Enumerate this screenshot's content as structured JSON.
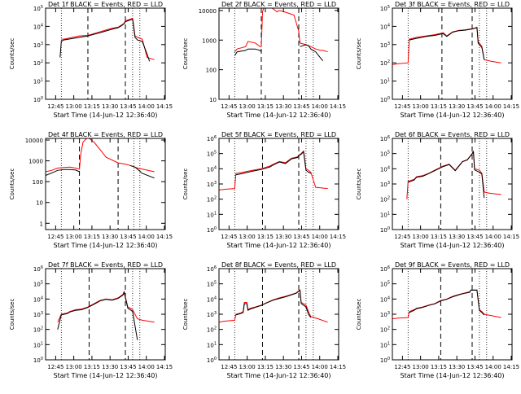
{
  "figure": {
    "x_label": "Start Time (14-Jun-12 12:36:40)",
    "y_label": "Counts/sec",
    "x_ticks": [
      "12:45",
      "13:00",
      "13:15",
      "13:30",
      "13:45",
      "14:00",
      "14:15"
    ],
    "series_colors": {
      "black": "#000000",
      "red": "#ff0000"
    }
  },
  "chart_data": [
    {
      "type": "line",
      "title": "Det 1f BLACK = Events, RED = LLD",
      "yscale": "log",
      "ylim": [
        1,
        100000
      ],
      "y_tick_labels": [
        "10^0",
        "10^1",
        "10^2",
        "10^3",
        "10^4",
        "10^5"
      ],
      "x_minutes": [
        0,
        10,
        12,
        13,
        15,
        28,
        35,
        45,
        55,
        60,
        63,
        65,
        66,
        72,
        74,
        76,
        80,
        84,
        86,
        90
      ],
      "series": [
        {
          "color": "red",
          "values": [
            null,
            null,
            null,
            2000,
            2000,
            3000,
            3200,
            5000,
            8000,
            9000,
            12000,
            15000,
            20000,
            28000,
            3000,
            2500,
            2000,
            200,
            180,
            150
          ]
        },
        {
          "color": "black",
          "values": [
            null,
            null,
            200,
            1500,
            1800,
            2500,
            3000,
            4500,
            7000,
            8500,
            11000,
            14000,
            18000,
            25000,
            2500,
            1800,
            1500,
            300,
            120,
            null
          ]
        }
      ],
      "vlines_dotted": [
        13,
        72,
        78
      ],
      "vlines_dashed": [
        35,
        66
      ]
    },
    {
      "type": "line",
      "title": "Det 2f BLACK = Events, RED = LLD",
      "yscale": "log",
      "ylim": [
        10,
        12000
      ],
      "y_tick_labels": [
        "10",
        "100",
        "1000",
        "10000"
      ],
      "x_minutes": [
        0,
        10,
        12,
        13,
        15,
        22,
        24,
        30,
        34,
        35,
        36,
        37,
        40,
        44,
        48,
        50,
        54,
        62,
        66,
        67,
        72,
        74,
        76,
        80,
        84,
        86,
        90
      ],
      "series": [
        {
          "color": "red",
          "values": [
            null,
            null,
            null,
            400,
            500,
            600,
            900,
            800,
            600,
            600,
            9000,
            12000,
            12000,
            12000,
            9000,
            10000,
            9000,
            7000,
            2000,
            800,
            700,
            650,
            600,
            500,
            450,
            450,
            400
          ]
        },
        {
          "color": "black",
          "values": [
            null,
            null,
            null,
            300,
            400,
            450,
            500,
            500,
            450,
            400,
            null,
            null,
            null,
            null,
            null,
            null,
            null,
            null,
            null,
            600,
            700,
            650,
            500,
            400,
            250,
            200,
            null
          ]
        }
      ],
      "vlines_dotted": [
        13,
        72,
        78
      ],
      "vlines_dashed": [
        35,
        66
      ]
    },
    {
      "type": "line",
      "title": "Det 3f BLACK = Events, RED = LLD",
      "yscale": "log",
      "ylim": [
        1,
        100000
      ],
      "y_tick_labels": [
        "10^0",
        "10^1",
        "10^2",
        "10^3",
        "10^4",
        "10^5"
      ],
      "x_minutes": [
        0,
        5,
        13,
        14,
        20,
        28,
        35,
        42,
        45,
        50,
        55,
        60,
        66,
        68,
        70,
        71,
        72,
        74,
        76,
        82,
        90
      ],
      "series": [
        {
          "color": "red",
          "values": [
            80,
            90,
            100,
            2000,
            2500,
            3000,
            3500,
            4500,
            3000,
            5000,
            6000,
            6500,
            7500,
            8000,
            9000,
            1500,
            1200,
            800,
            150,
            120,
            100
          ]
        },
        {
          "color": "black",
          "values": [
            null,
            null,
            null,
            1800,
            2200,
            2800,
            3200,
            4000,
            2800,
            4800,
            5800,
            6200,
            7200,
            7800,
            8500,
            1200,
            1000,
            700,
            150,
            null,
            null
          ]
        }
      ],
      "vlines_dotted": [
        13,
        72,
        78
      ],
      "vlines_dashed": [
        41,
        66
      ]
    },
    {
      "type": "line",
      "title": "Det 4f BLACK = Events, RED = LLD",
      "yscale": "log",
      "ylim": [
        0.5,
        12000
      ],
      "y_tick_labels": [
        "1",
        "10",
        "100",
        "1000",
        "10000"
      ],
      "x_minutes": [
        0,
        5,
        10,
        15,
        20,
        25,
        28,
        29,
        31,
        34,
        36,
        40,
        46,
        50,
        60,
        66,
        70,
        74,
        76,
        80,
        90
      ],
      "series": [
        {
          "color": "red",
          "values": [
            300,
            350,
            450,
            480,
            500,
            450,
            400,
            2000,
            8000,
            12000,
            12000,
            8000,
            3000,
            1500,
            800,
            700,
            600,
            500,
            450,
            400,
            300
          ]
        },
        {
          "color": "black",
          "values": [
            200,
            260,
            350,
            380,
            380,
            360,
            300,
            null,
            null,
            null,
            null,
            null,
            null,
            null,
            null,
            null,
            600,
            500,
            400,
            250,
            150
          ]
        }
      ],
      "vlines_dotted": [
        13,
        73,
        78
      ],
      "vlines_dashed": [
        28,
        60
      ]
    },
    {
      "type": "line",
      "title": "Det 5f BLACK = Events, RED = LLD",
      "yscale": "log",
      "ylim": [
        1,
        1000000
      ],
      "y_tick_labels": [
        "10^0",
        "10^1",
        "10^2",
        "10^3",
        "10^4",
        "10^5",
        "10^6"
      ],
      "x_minutes": [
        0,
        5,
        13,
        14,
        20,
        28,
        35,
        42,
        45,
        50,
        55,
        60,
        65,
        66,
        68,
        70,
        72,
        74,
        76,
        80,
        90
      ],
      "series": [
        {
          "color": "red",
          "values": [
            400,
            450,
            500,
            5000,
            6000,
            8000,
            10000,
            15000,
            20000,
            30000,
            25000,
            50000,
            60000,
            80000,
            100000,
            150000,
            10000,
            8000,
            6000,
            600,
            500
          ]
        },
        {
          "color": "black",
          "values": [
            null,
            null,
            null,
            4000,
            5000,
            7000,
            9000,
            13000,
            18000,
            28000,
            22000,
            45000,
            55000,
            75000,
            90000,
            130000,
            8000,
            6000,
            5000,
            null,
            null
          ]
        }
      ],
      "vlines_dotted": [
        13,
        72,
        78
      ],
      "vlines_dashed": [
        36,
        66
      ]
    },
    {
      "type": "line",
      "title": "Det 6f BLACK = Events, RED = LLD",
      "yscale": "log",
      "ylim": [
        1,
        1000000
      ],
      "y_tick_labels": [
        "10^0",
        "10^1",
        "10^2",
        "10^3",
        "10^4",
        "10^5",
        "10^6"
      ],
      "x_minutes": [
        0,
        8,
        10,
        12,
        13,
        18,
        20,
        25,
        30,
        35,
        42,
        47,
        52,
        58,
        62,
        66,
        67,
        68,
        72,
        74,
        76,
        80,
        90
      ],
      "series": [
        {
          "color": "red",
          "values": [
            null,
            null,
            null,
            100,
            1500,
            2000,
            3000,
            3500,
            5000,
            8000,
            15000,
            20000,
            8000,
            30000,
            40000,
            100000,
            150000,
            10000,
            8000,
            5000,
            300,
            250,
            200
          ]
        },
        {
          "color": "black",
          "values": [
            null,
            null,
            120,
            null,
            1300,
            1800,
            2800,
            3200,
            4800,
            7500,
            14000,
            19000,
            7500,
            29000,
            38000,
            95000,
            140000,
            8500,
            6000,
            4500,
            120,
            null,
            null
          ]
        }
      ],
      "vlines_dotted": [
        13,
        72,
        78
      ],
      "vlines_dashed": [
        40,
        66
      ]
    },
    {
      "type": "line",
      "title": "Det 7f BLACK = Events, RED = LLD",
      "yscale": "log",
      "ylim": [
        1,
        1000000
      ],
      "y_tick_labels": [
        "10^0",
        "10^1",
        "10^2",
        "10^3",
        "10^4",
        "10^5",
        "10^6"
      ],
      "x_minutes": [
        0,
        8,
        10,
        13,
        18,
        20,
        25,
        30,
        35,
        40,
        45,
        50,
        55,
        60,
        64,
        65,
        68,
        70,
        72,
        76,
        80,
        90
      ],
      "series": [
        {
          "color": "red",
          "values": [
            null,
            null,
            300,
            1000,
            1200,
            1500,
            2000,
            2200,
            3000,
            5000,
            8000,
            10000,
            9000,
            12000,
            20000,
            30000,
            3000,
            2500,
            2000,
            500,
            400,
            300
          ]
        },
        {
          "color": "black",
          "values": [
            null,
            null,
            100,
            900,
            1100,
            1400,
            1800,
            2000,
            2800,
            4500,
            7500,
            9500,
            8500,
            11000,
            18000,
            28000,
            2500,
            2000,
            1500,
            20,
            null,
            null
          ]
        }
      ],
      "vlines_dotted": [
        13,
        72,
        78
      ],
      "vlines_dashed": [
        36,
        66
      ]
    },
    {
      "type": "line",
      "title": "Det 8f BLACK = Events, RED = LLD",
      "yscale": "log",
      "ylim": [
        1,
        1000000
      ],
      "y_tick_labels": [
        "10^0",
        "10^1",
        "10^2",
        "10^3",
        "10^4",
        "10^5",
        "10^6"
      ],
      "x_minutes": [
        0,
        5,
        13,
        14,
        18,
        20,
        21,
        23,
        24,
        26,
        30,
        35,
        40,
        45,
        50,
        55,
        60,
        64,
        65,
        67,
        68,
        70,
        72,
        74,
        76,
        82,
        90
      ],
      "series": [
        {
          "color": "red",
          "values": [
            300,
            350,
            400,
            1000,
            1200,
            1500,
            6000,
            6000,
            2000,
            2500,
            3000,
            4000,
            6000,
            9000,
            12000,
            15000,
            20000,
            25000,
            30000,
            40000,
            6000,
            5000,
            4000,
            1500,
            700,
            500,
            300
          ]
        },
        {
          "color": "black",
          "values": [
            null,
            null,
            null,
            900,
            1100,
            1300,
            5000,
            5000,
            1800,
            2200,
            2800,
            3800,
            5800,
            8500,
            11000,
            14000,
            19000,
            24000,
            28000,
            38000,
            5000,
            4000,
            3000,
            1000,
            600,
            null,
            null
          ]
        }
      ],
      "vlines_dotted": [
        13,
        72,
        78
      ],
      "vlines_dashed": [
        36,
        66
      ]
    },
    {
      "type": "line",
      "title": "Det 9f BLACK = Events, RED = LLD",
      "yscale": "log",
      "ylim": [
        1,
        1000000
      ],
      "y_tick_labels": [
        "10^0",
        "10^1",
        "10^2",
        "10^3",
        "10^4",
        "10^5",
        "10^6"
      ],
      "x_minutes": [
        0,
        5,
        13,
        14,
        18,
        20,
        25,
        30,
        35,
        40,
        45,
        50,
        55,
        60,
        64,
        65,
        68,
        70,
        72,
        74,
        76,
        82,
        90
      ],
      "series": [
        {
          "color": "red",
          "values": [
            500,
            550,
            600,
            1500,
            2000,
            2500,
            3000,
            4000,
            5000,
            8000,
            10000,
            15000,
            20000,
            25000,
            30000,
            40000,
            40000,
            40000,
            2000,
            1500,
            1000,
            800,
            600
          ]
        },
        {
          "color": "black",
          "values": [
            null,
            null,
            null,
            1300,
            1800,
            2300,
            2800,
            3800,
            4800,
            7500,
            9500,
            14000,
            19000,
            24000,
            28000,
            38000,
            38000,
            38000,
            1800,
            1300,
            900,
            null,
            null
          ]
        }
      ],
      "vlines_dotted": [
        13,
        72,
        78
      ],
      "vlines_dashed": [
        40,
        66
      ]
    }
  ]
}
